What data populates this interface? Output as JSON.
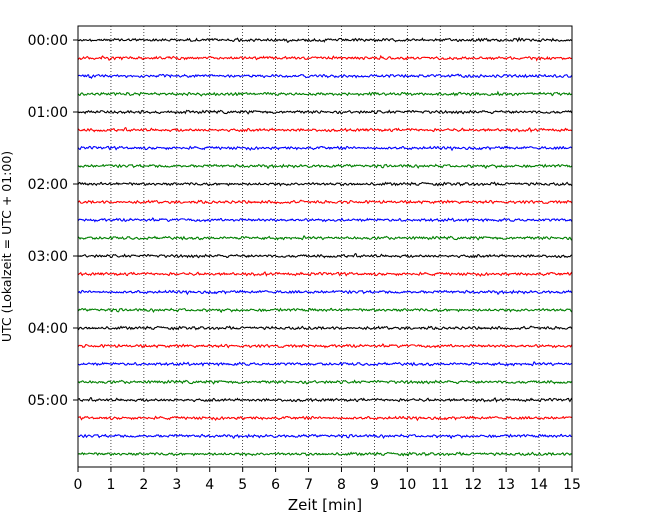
{
  "chart_data": {
    "type": "line",
    "title": "",
    "xlabel": "Zeit  [min]",
    "ylabel": "UTC (Lokalzeit = UTC + 01:00)",
    "xlim": [
      0,
      15
    ],
    "x_ticks": [
      "0",
      "1",
      "2",
      "3",
      "4",
      "5",
      "6",
      "7",
      "8",
      "9",
      "10",
      "11",
      "12",
      "13",
      "14",
      "15"
    ],
    "y_ticks": [
      "00:00",
      "01:00",
      "02:00",
      "03:00",
      "04:00",
      "05:00"
    ],
    "grid": "vertical dotted at each minute",
    "legend": "none",
    "trace_interval_min": 15,
    "trace_count": 24,
    "trace_colors": [
      "#000000",
      "#ff0000",
      "#0000ff",
      "#008000"
    ],
    "trace_start_times": [
      "00:00",
      "00:15",
      "00:30",
      "00:45",
      "01:00",
      "01:15",
      "01:30",
      "01:45",
      "02:00",
      "02:15",
      "02:30",
      "02:45",
      "03:00",
      "03:15",
      "03:30",
      "03:45",
      "04:00",
      "04:15",
      "04:30",
      "04:45",
      "05:00",
      "05:15",
      "05:30",
      "05:45"
    ]
  }
}
